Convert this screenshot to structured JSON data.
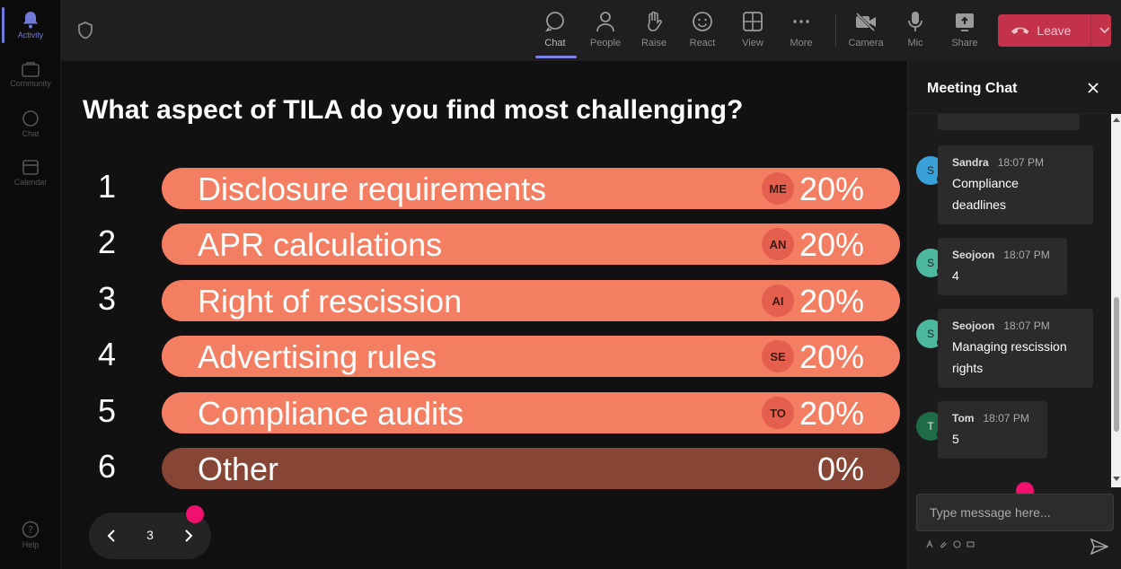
{
  "rail": {
    "items": [
      {
        "label": "Activity",
        "icon": "bell-icon"
      },
      {
        "label": "Community",
        "icon": "community-icon"
      },
      {
        "label": "Chat",
        "icon": "chat-icon"
      },
      {
        "label": "Calendar",
        "icon": "calendar-icon"
      },
      {
        "label": "Help",
        "icon": "help-icon"
      }
    ]
  },
  "toolbar": {
    "chat": "Chat",
    "people": "People",
    "raise": "Raise",
    "react": "React",
    "view": "View",
    "more": "More",
    "camera": "Camera",
    "mic": "Mic",
    "share": "Share",
    "leave": "Leave"
  },
  "poll": {
    "question": "What aspect of TILA do you find most challenging?",
    "options": [
      {
        "num": "1",
        "label": "Disclosure requirements",
        "badge": "ME",
        "percent": "20%",
        "value": 20
      },
      {
        "num": "2",
        "label": "APR calculations",
        "badge": "AN",
        "percent": "20%",
        "value": 20
      },
      {
        "num": "3",
        "label": "Right of rescission",
        "badge": "AI",
        "percent": "20%",
        "value": 20
      },
      {
        "num": "4",
        "label": "Advertising rules",
        "badge": "SE",
        "percent": "20%",
        "value": 20
      },
      {
        "num": "5",
        "label": "Compliance audits",
        "badge": "TO",
        "percent": "20%",
        "value": 20
      },
      {
        "num": "6",
        "label": "Other",
        "badge": "",
        "percent": "0%",
        "value": 0
      }
    ],
    "page": "3"
  },
  "chat": {
    "title": "Meeting Chat",
    "messages": [
      {
        "initial": "S",
        "name": "Sandra",
        "time": "18:07 PM",
        "lines": [
          "Compliance",
          "deadlines"
        ],
        "avatar_color": "#3aa0d8"
      },
      {
        "initial": "S",
        "name": "Seojoon",
        "time": "18:07 PM",
        "lines": [
          "4"
        ],
        "avatar_color": "#4db8a0"
      },
      {
        "initial": "S",
        "name": "Seojoon",
        "time": "18:07 PM",
        "lines": [
          "Managing rescission",
          "rights"
        ],
        "avatar_color": "#4db8a0"
      },
      {
        "initial": "T",
        "name": "Tom",
        "time": "18:07 PM",
        "lines": [
          "5"
        ],
        "avatar_color": "#1f6b46"
      }
    ],
    "input_placeholder": "Type message here..."
  }
}
